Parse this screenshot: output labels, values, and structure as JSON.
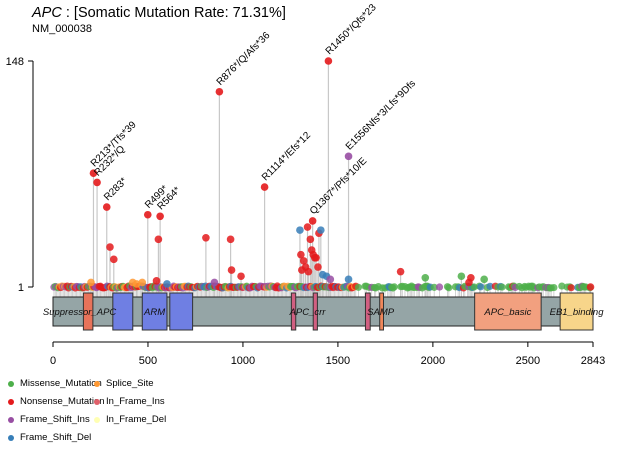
{
  "header": {
    "gene": "APC",
    "rate_text": " : [Somatic Mutation Rate: 71.31%]",
    "transcript": "NM_000038"
  },
  "chart_data": {
    "type": "lollipop",
    "title": "APC : [Somatic Mutation Rate: 71.31%]",
    "subtitle": "NM_000038",
    "xlabel": "",
    "ylabel": "",
    "xlim": [
      0,
      2843
    ],
    "ylim": [
      1,
      148
    ],
    "x_ticks": [
      0,
      500,
      1000,
      1500,
      2000,
      2500,
      2843
    ],
    "y_ticks": [
      1,
      148
    ],
    "colors": {
      "Missense_Mutation": "#33a02c",
      "Nonsense_Mutation": "#e31a1c",
      "Frame_Shift_Ins": "#6a3d9a",
      "Frame_Shift_Del": "#1f78b4",
      "Splice_Site": "#ff7f00",
      "In_Frame_Ins": "#d6604d",
      "In_Frame_Del": "#ffffb3"
    },
    "legend": [
      {
        "label": "Missense_Mutation",
        "color": "#4daf4a"
      },
      {
        "label": "Nonsense_Mutation",
        "color": "#e41a1c"
      },
      {
        "label": "Frame_Shift_Ins",
        "color": "#984ea3"
      },
      {
        "label": "Frame_Shift_Del",
        "color": "#377eb8"
      },
      {
        "label": "Splice_Site",
        "color": "#ff9933"
      },
      {
        "label": "In_Frame_Ins",
        "color": "#e0606a"
      },
      {
        "label": "In_Frame_Del",
        "color": "#ffffb3"
      }
    ],
    "legend_position": "bottom-left",
    "domains": [
      {
        "name": "Suppressor_APC",
        "start": 0,
        "end": 2843,
        "color": "#95a5a6",
        "label_at": 140,
        "is_background": true
      },
      {
        "name": "",
        "start": 160,
        "end": 210,
        "color": "#e8735a"
      },
      {
        "name": "",
        "start": 315,
        "end": 420,
        "color": "#6f7fe3"
      },
      {
        "name": "ARM",
        "start": 470,
        "end": 600,
        "color": "#6f7fe3"
      },
      {
        "name": "",
        "start": 615,
        "end": 735,
        "color": "#6f7fe3"
      },
      {
        "name": "APC_crr",
        "start": 1255,
        "end": 1278,
        "color": "#d15f81",
        "label_at": 1340
      },
      {
        "name": "",
        "start": 1370,
        "end": 1392,
        "color": "#d15f81"
      },
      {
        "name": "SAMP",
        "start": 1645,
        "end": 1670,
        "color": "#d15f81",
        "label_at": 1725
      },
      {
        "name": "",
        "start": 1720,
        "end": 1740,
        "color": "#f0875a"
      },
      {
        "name": "APC_basic",
        "start": 2220,
        "end": 2570,
        "color": "#f2a07f"
      },
      {
        "name": "EB1_binding",
        "start": 2670,
        "end": 2843,
        "color": "#f7d58a"
      }
    ],
    "labeled_mutations": [
      {
        "label": "R213*/Tfs*39",
        "pos": 213,
        "count": 75,
        "type": "Nonsense_Mutation"
      },
      {
        "label": "R232*/Q",
        "pos": 232,
        "count": 69,
        "type": "Nonsense_Mutation"
      },
      {
        "label": "R283*",
        "pos": 283,
        "count": 53,
        "type": "Nonsense_Mutation"
      },
      {
        "label": "R499*",
        "pos": 499,
        "count": 48,
        "type": "Nonsense_Mutation"
      },
      {
        "label": "R564*",
        "pos": 564,
        "count": 47,
        "type": "Nonsense_Mutation"
      },
      {
        "label": "R876*/Q/Afs*36",
        "pos": 876,
        "count": 128,
        "type": "Nonsense_Mutation"
      },
      {
        "label": "R1114*/Efs*12",
        "pos": 1114,
        "count": 66,
        "type": "Nonsense_Mutation"
      },
      {
        "label": "Q1367*/Pfs*10/E",
        "pos": 1367,
        "count": 44,
        "type": "Nonsense_Mutation"
      },
      {
        "label": "R1450*/Qfs*23",
        "pos": 1450,
        "count": 148,
        "type": "Nonsense_Mutation"
      },
      {
        "label": "E1556Nfs*3/Lfs*9Dfs",
        "pos": 1556,
        "count": 86,
        "type": "Frame_Shift_Ins"
      }
    ],
    "other_mutations": [
      {
        "pos": 200,
        "count": 4,
        "type": "Splice_Site"
      },
      {
        "pos": 300,
        "count": 27,
        "type": "Nonsense_Mutation"
      },
      {
        "pos": 320,
        "count": 19,
        "type": "Nonsense_Mutation"
      },
      {
        "pos": 555,
        "count": 32,
        "type": "Nonsense_Mutation"
      },
      {
        "pos": 805,
        "count": 33,
        "type": "Nonsense_Mutation"
      },
      {
        "pos": 935,
        "count": 32,
        "type": "Nonsense_Mutation"
      },
      {
        "pos": 940,
        "count": 12,
        "type": "Nonsense_Mutation"
      },
      {
        "pos": 990,
        "count": 8,
        "type": "Nonsense_Mutation"
      },
      {
        "pos": 545,
        "count": 5,
        "type": "Nonsense_Mutation"
      },
      {
        "pos": 470,
        "count": 4,
        "type": "Splice_Site"
      },
      {
        "pos": 420,
        "count": 4,
        "type": "Splice_Site"
      },
      {
        "pos": 440,
        "count": 3,
        "type": "Splice_Site"
      },
      {
        "pos": 600,
        "count": 3,
        "type": "Frame_Shift_Del"
      },
      {
        "pos": 850,
        "count": 4,
        "type": "Frame_Shift_Ins"
      },
      {
        "pos": 1300,
        "count": 38,
        "type": "Frame_Shift_Del"
      },
      {
        "pos": 1340,
        "count": 40,
        "type": "Nonsense_Mutation"
      },
      {
        "pos": 1355,
        "count": 32,
        "type": "Nonsense_Mutation"
      },
      {
        "pos": 1362,
        "count": 25,
        "type": "Nonsense_Mutation"
      },
      {
        "pos": 1370,
        "count": 22,
        "type": "Nonsense_Mutation"
      },
      {
        "pos": 1378,
        "count": 20,
        "type": "Nonsense_Mutation"
      },
      {
        "pos": 1385,
        "count": 20,
        "type": "Nonsense_Mutation"
      },
      {
        "pos": 1305,
        "count": 22,
        "type": "Nonsense_Mutation"
      },
      {
        "pos": 1320,
        "count": 18,
        "type": "Nonsense_Mutation"
      },
      {
        "pos": 1330,
        "count": 14,
        "type": "Nonsense_Mutation"
      },
      {
        "pos": 1310,
        "count": 12,
        "type": "Nonsense_Mutation"
      },
      {
        "pos": 1345,
        "count": 11,
        "type": "Nonsense_Mutation"
      },
      {
        "pos": 1400,
        "count": 36,
        "type": "Nonsense_Mutation"
      },
      {
        "pos": 1410,
        "count": 38,
        "type": "Frame_Shift_Del"
      },
      {
        "pos": 1395,
        "count": 14,
        "type": "Nonsense_Mutation"
      },
      {
        "pos": 1420,
        "count": 9,
        "type": "Frame_Shift_Del"
      },
      {
        "pos": 1440,
        "count": 8,
        "type": "Frame_Shift_Del"
      },
      {
        "pos": 1460,
        "count": 6,
        "type": "Frame_Shift_Ins"
      },
      {
        "pos": 1556,
        "count": 6,
        "type": "Frame_Shift_Del"
      },
      {
        "pos": 1830,
        "count": 11,
        "type": "Nonsense_Mutation"
      },
      {
        "pos": 2200,
        "count": 7,
        "type": "Nonsense_Mutation"
      },
      {
        "pos": 2190,
        "count": 4,
        "type": "Nonsense_Mutation"
      },
      {
        "pos": 2270,
        "count": 6,
        "type": "Missense_Mutation"
      },
      {
        "pos": 1960,
        "count": 7,
        "type": "Missense_Mutation"
      },
      {
        "pos": 2150,
        "count": 8,
        "type": "Missense_Mutation"
      },
      {
        "pos": 2830,
        "count": 1,
        "type": "Nonsense_Mutation"
      }
    ]
  }
}
